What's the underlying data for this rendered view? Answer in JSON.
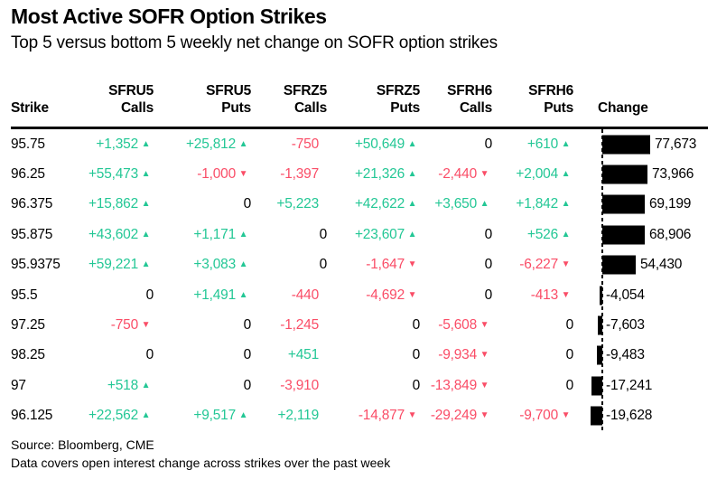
{
  "header": {
    "title": "Most Active SOFR Option Strikes",
    "subtitle": "Top 5 versus bottom 5 weekly net change on SOFR option strikes"
  },
  "colors": {
    "positive": "#23C795",
    "negative": "#FA4D67",
    "neutral": "#000000",
    "bar": "#000000"
  },
  "icons": {
    "up": "up-arrow-icon",
    "down": "down-arrow-icon"
  },
  "table": {
    "columns": [
      {
        "line1": "",
        "line2": "Strike"
      },
      {
        "line1": "SFRU5",
        "line2": "Calls"
      },
      {
        "line1": "SFRU5",
        "line2": "Puts"
      },
      {
        "line1": "SFRZ5",
        "line2": "Calls"
      },
      {
        "line1": "SFRZ5",
        "line2": "Puts"
      },
      {
        "line1": "SFRH6",
        "line2": "Calls"
      },
      {
        "line1": "SFRH6",
        "line2": "Puts"
      },
      {
        "line1": "",
        "line2": "Change"
      }
    ],
    "rows": [
      {
        "strike": "95.75",
        "values": [
          "+1,352",
          "+25,812",
          "-750",
          "+50,649",
          "0",
          "+610"
        ],
        "arrows": [
          "up",
          "up",
          "",
          "up",
          "",
          "up"
        ],
        "change": 77673,
        "change_label": "77,673"
      },
      {
        "strike": "96.25",
        "values": [
          "+55,473",
          "-1,000",
          "-1,397",
          "+21,326",
          "-2,440",
          "+2,004"
        ],
        "arrows": [
          "up",
          "down",
          "",
          "up",
          "down",
          "up"
        ],
        "change": 73966,
        "change_label": "73,966"
      },
      {
        "strike": "96.375",
        "values": [
          "+15,862",
          "0",
          "+5,223",
          "+42,622",
          "+3,650",
          "+1,842"
        ],
        "arrows": [
          "up",
          "",
          "",
          "up",
          "up",
          "up"
        ],
        "change": 69199,
        "change_label": "69,199"
      },
      {
        "strike": "95.875",
        "values": [
          "+43,602",
          "+1,171",
          "0",
          "+23,607",
          "0",
          "+526"
        ],
        "arrows": [
          "up",
          "up",
          "",
          "up",
          "",
          "up"
        ],
        "change": 68906,
        "change_label": "68,906"
      },
      {
        "strike": "95.9375",
        "values": [
          "+59,221",
          "+3,083",
          "0",
          "-1,647",
          "0",
          "-6,227"
        ],
        "arrows": [
          "up",
          "up",
          "",
          "down",
          "",
          "down"
        ],
        "change": 54430,
        "change_label": "54,430"
      },
      {
        "strike": "95.5",
        "values": [
          "0",
          "+1,491",
          "-440",
          "-4,692",
          "0",
          "-413"
        ],
        "arrows": [
          "",
          "up",
          "",
          "down",
          "",
          "down"
        ],
        "change": -4054,
        "change_label": "-4,054"
      },
      {
        "strike": "97.25",
        "values": [
          "-750",
          "0",
          "-1,245",
          "0",
          "-5,608",
          "0"
        ],
        "arrows": [
          "down",
          "",
          "",
          "",
          "down",
          ""
        ],
        "change": -7603,
        "change_label": "-7,603"
      },
      {
        "strike": "98.25",
        "values": [
          "0",
          "0",
          "+451",
          "0",
          "-9,934",
          "0"
        ],
        "arrows": [
          "",
          "",
          "",
          "",
          "down",
          ""
        ],
        "change": -9483,
        "change_label": "-9,483"
      },
      {
        "strike": "97",
        "values": [
          "+518",
          "0",
          "-3,910",
          "0",
          "-13,849",
          "0"
        ],
        "arrows": [
          "up",
          "",
          "",
          "",
          "down",
          ""
        ],
        "change": -17241,
        "change_label": "-17,241"
      },
      {
        "strike": "96.125",
        "values": [
          "+22,562",
          "+9,517",
          "+2,119",
          "-14,877",
          "-29,249",
          "-9,700"
        ],
        "arrows": [
          "up",
          "up",
          "",
          "down",
          "down",
          "down"
        ],
        "change": -19628,
        "change_label": "-19,628"
      }
    ]
  },
  "chart_data": {
    "type": "bar",
    "orientation": "horizontal",
    "title": "Most Active SOFR Option Strikes",
    "subtitle": "Top 5 versus bottom 5 weekly net change on SOFR option strikes",
    "categories": [
      "95.75",
      "96.25",
      "96.375",
      "95.875",
      "95.9375",
      "95.5",
      "97.25",
      "98.25",
      "97",
      "96.125"
    ],
    "series": [
      {
        "name": "SFRU5 Calls",
        "values": [
          1352,
          55473,
          15862,
          43602,
          59221,
          0,
          -750,
          0,
          518,
          22562
        ]
      },
      {
        "name": "SFRU5 Puts",
        "values": [
          25812,
          -1000,
          0,
          1171,
          3083,
          1491,
          0,
          0,
          0,
          9517
        ]
      },
      {
        "name": "SFRZ5 Calls",
        "values": [
          -750,
          -1397,
          5223,
          0,
          0,
          -440,
          -1245,
          451,
          -3910,
          2119
        ]
      },
      {
        "name": "SFRZ5 Puts",
        "values": [
          50649,
          21326,
          42622,
          23607,
          -1647,
          -4692,
          0,
          0,
          0,
          -14877
        ]
      },
      {
        "name": "SFRH6 Calls",
        "values": [
          0,
          -2440,
          3650,
          0,
          0,
          0,
          -5608,
          -9934,
          -13849,
          -29249
        ]
      },
      {
        "name": "SFRH6 Puts",
        "values": [
          610,
          2004,
          1842,
          526,
          -6227,
          -413,
          0,
          0,
          0,
          -9700
        ]
      },
      {
        "name": "Change",
        "values": [
          77673,
          73966,
          69199,
          68906,
          54430,
          -4054,
          -7603,
          -9483,
          -17241,
          -19628
        ]
      }
    ],
    "xlabel": "",
    "ylabel": "Strike",
    "xlim": [
      -30000,
      80000
    ],
    "grid": false,
    "legend_position": "none"
  },
  "footer": {
    "source": "Source: Bloomberg, CME",
    "note": "Data covers open interest change across strikes over the past week"
  }
}
